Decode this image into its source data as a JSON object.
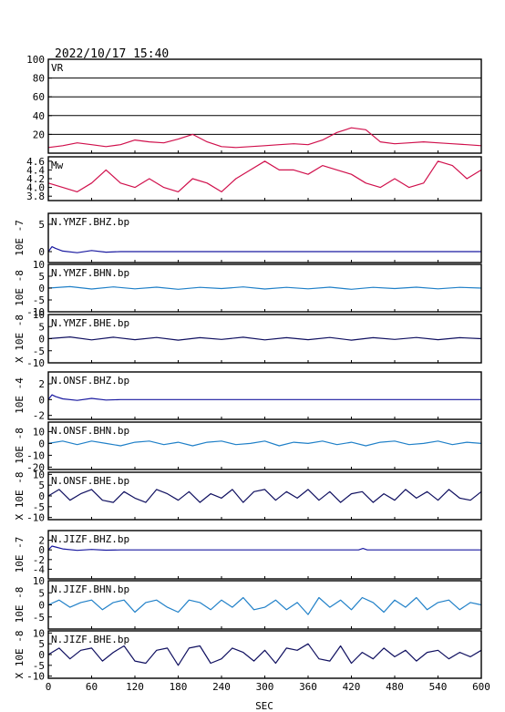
{
  "header": {
    "timestamp": "2022/10/17 15:40"
  },
  "x_axis": {
    "label": "SEC",
    "range": [
      0,
      600
    ],
    "ticks": [
      "0",
      "60",
      "120",
      "180",
      "240",
      "300",
      "360",
      "420",
      "480",
      "540",
      "600"
    ]
  },
  "chart_data": {
    "type": "line",
    "panels": [
      {
        "label": "VR",
        "color": "#d0104c",
        "ylim": [
          0,
          100
        ],
        "grid": true,
        "yticks": [
          "20",
          "40",
          "60",
          "80",
          "100"
        ],
        "scale_label": "",
        "series": {
          "x": [
            0,
            20,
            40,
            60,
            80,
            100,
            120,
            140,
            160,
            180,
            200,
            220,
            240,
            260,
            280,
            300,
            320,
            340,
            360,
            380,
            400,
            420,
            440,
            460,
            480,
            500,
            520,
            540,
            560,
            580,
            600
          ],
          "y": [
            6,
            8,
            11,
            9,
            7,
            9,
            14,
            12,
            11,
            15,
            20,
            12,
            7,
            6,
            7,
            8,
            9,
            10,
            9,
            14,
            22,
            27,
            25,
            12,
            10,
            11,
            12,
            11,
            10,
            9,
            8
          ]
        }
      },
      {
        "label": "Mw",
        "color": "#d0104c",
        "ylim": [
          3.7,
          4.7
        ],
        "grid": false,
        "yticks": [
          "3.8",
          "4.0",
          "4.2",
          "4.4",
          "4.6"
        ],
        "scale_label": "",
        "series": {
          "x": [
            0,
            20,
            40,
            60,
            80,
            100,
            120,
            140,
            160,
            180,
            200,
            220,
            240,
            260,
            280,
            300,
            320,
            340,
            360,
            380,
            400,
            420,
            440,
            460,
            480,
            500,
            520,
            540,
            560,
            580,
            600
          ],
          "y": [
            4.1,
            4.0,
            3.9,
            4.1,
            4.4,
            4.1,
            4.0,
            4.2,
            4.0,
            3.9,
            4.2,
            4.1,
            3.9,
            4.2,
            4.4,
            4.6,
            4.4,
            4.4,
            4.3,
            4.5,
            4.4,
            4.3,
            4.1,
            4.0,
            4.2,
            4.0,
            4.1,
            4.6,
            4.5,
            4.2,
            4.4
          ]
        }
      },
      {
        "label": "N.YMZF.BHZ.bp",
        "color": "#1a1aa0",
        "ylim": [
          -2,
          7
        ],
        "grid": false,
        "yticks": [
          "0",
          "5"
        ],
        "scale_label": "10E -7",
        "series": {
          "x": [
            0,
            5,
            10,
            20,
            40,
            60,
            80,
            100,
            140,
            200,
            300,
            400,
            500,
            600
          ],
          "y": [
            0,
            0.9,
            0.6,
            0.1,
            -0.2,
            0.2,
            -0.1,
            0,
            0,
            0,
            0,
            0,
            0,
            0
          ]
        }
      },
      {
        "label": "N.YMZF.BHN.bp",
        "color": "#2080c8",
        "ylim": [
          -10,
          10
        ],
        "grid": false,
        "yticks": [
          "-10",
          "-5",
          "0",
          "5",
          "10"
        ],
        "scale_label": "10E -8",
        "series": {
          "x": [
            0,
            30,
            60,
            90,
            120,
            150,
            180,
            210,
            240,
            270,
            300,
            330,
            360,
            390,
            420,
            450,
            480,
            510,
            540,
            570,
            600
          ],
          "y": [
            0,
            0.6,
            -0.4,
            0.5,
            -0.3,
            0.4,
            -0.5,
            0.3,
            -0.2,
            0.5,
            -0.4,
            0.3,
            -0.3,
            0.4,
            -0.5,
            0.3,
            -0.2,
            0.4,
            -0.3,
            0.3,
            0
          ]
        }
      },
      {
        "label": "N.YMZF.BHE.bp",
        "color": "#101060",
        "ylim": [
          -10,
          10
        ],
        "grid": false,
        "yticks": [
          "-10",
          "-5",
          "0",
          "5",
          "10"
        ],
        "scale_label": "X 10E -8",
        "series": {
          "x": [
            0,
            30,
            60,
            90,
            120,
            150,
            180,
            210,
            240,
            270,
            300,
            330,
            360,
            390,
            420,
            450,
            480,
            510,
            540,
            570,
            600
          ],
          "y": [
            0,
            0.7,
            -0.5,
            0.6,
            -0.4,
            0.5,
            -0.6,
            0.4,
            -0.3,
            0.6,
            -0.5,
            0.4,
            -0.4,
            0.5,
            -0.6,
            0.4,
            -0.3,
            0.5,
            -0.4,
            0.4,
            0
          ]
        }
      },
      {
        "label": "N.ONSF.BHZ.bp",
        "color": "#1a1aa0",
        "ylim": [
          -2.5,
          3.5
        ],
        "grid": false,
        "yticks": [
          "-2",
          "0",
          "2"
        ],
        "scale_label": "10E -4",
        "series": {
          "x": [
            0,
            5,
            10,
            20,
            40,
            60,
            80,
            100,
            140,
            200,
            300,
            400,
            500,
            600
          ],
          "y": [
            0,
            0.6,
            0.4,
            0.1,
            -0.1,
            0.15,
            -0.05,
            0,
            0,
            0,
            0,
            0,
            0,
            0
          ]
        }
      },
      {
        "label": "N.ONSF.BHN.bp",
        "color": "#2080c8",
        "ylim": [
          -22,
          18
        ],
        "grid": false,
        "yticks": [
          "-20",
          "-10",
          "0",
          "10"
        ],
        "scale_label": "10E -8",
        "series": {
          "x": [
            0,
            20,
            40,
            60,
            80,
            100,
            120,
            140,
            160,
            180,
            200,
            220,
            240,
            260,
            280,
            300,
            320,
            340,
            360,
            380,
            400,
            420,
            440,
            460,
            480,
            500,
            520,
            540,
            560,
            580,
            600
          ],
          "y": [
            0,
            2,
            -1,
            2,
            0,
            -2,
            1,
            2,
            -1,
            1,
            -2,
            1,
            2,
            -1,
            0,
            2,
            -2,
            1,
            0,
            2,
            -1,
            1,
            -2,
            1,
            2,
            -1,
            0,
            2,
            -1,
            1,
            0
          ]
        }
      },
      {
        "label": "N.ONSF.BHE.bp",
        "color": "#101060",
        "ylim": [
          -11,
          11
        ],
        "grid": false,
        "yticks": [
          "-10",
          "-5",
          "0",
          "5",
          "10"
        ],
        "scale_label": "X 10E -8",
        "series": {
          "x": [
            0,
            15,
            30,
            45,
            60,
            75,
            90,
            105,
            120,
            135,
            150,
            165,
            180,
            195,
            210,
            225,
            240,
            255,
            270,
            285,
            300,
            315,
            330,
            345,
            360,
            375,
            390,
            405,
            420,
            435,
            450,
            465,
            480,
            495,
            510,
            525,
            540,
            555,
            570,
            585,
            600
          ],
          "y": [
            0,
            3,
            -2,
            1,
            3,
            -2,
            -3,
            2,
            -1,
            -3,
            3,
            1,
            -2,
            2,
            -3,
            1,
            -1,
            3,
            -3,
            2,
            3,
            -2,
            2,
            -1,
            3,
            -2,
            2,
            -3,
            1,
            2,
            -3,
            1,
            -2,
            3,
            -1,
            2,
            -2,
            3,
            -1,
            -2,
            2
          ]
        }
      },
      {
        "label": "N.JIZF.BHZ.bp",
        "color": "#1a1aa0",
        "ylim": [
          -6,
          4
        ],
        "grid": false,
        "yticks": [
          "-4",
          "-2",
          "0",
          "2"
        ],
        "scale_label": "10E -7",
        "series": {
          "x": [
            0,
            5,
            10,
            20,
            40,
            60,
            80,
            100,
            140,
            200,
            300,
            400,
            430,
            436,
            442,
            450,
            500,
            600
          ],
          "y": [
            0,
            0.8,
            0.6,
            0.2,
            -0.1,
            0.1,
            -0.05,
            0,
            0,
            0,
            0,
            0,
            0,
            0.3,
            0,
            0,
            0,
            0
          ]
        }
      },
      {
        "label": "N.JIZF.BHN.bp",
        "color": "#2080c8",
        "ylim": [
          -10,
          10
        ],
        "grid": false,
        "yticks": [
          "-5",
          "0",
          "5",
          "10"
        ],
        "scale_label": "10E -8",
        "series": {
          "x": [
            0,
            15,
            30,
            45,
            60,
            75,
            90,
            105,
            120,
            135,
            150,
            165,
            180,
            195,
            210,
            225,
            240,
            255,
            270,
            285,
            300,
            315,
            330,
            345,
            360,
            375,
            390,
            405,
            420,
            435,
            450,
            465,
            480,
            495,
            510,
            525,
            540,
            555,
            570,
            585,
            600
          ],
          "y": [
            0,
            2,
            -1,
            1,
            2,
            -2,
            1,
            2,
            -3,
            1,
            2,
            -1,
            -3,
            2,
            1,
            -2,
            2,
            -1,
            3,
            -2,
            -1,
            2,
            -2,
            1,
            -4,
            3,
            -1,
            2,
            -2,
            3,
            1,
            -3,
            2,
            -1,
            3,
            -2,
            1,
            2,
            -2,
            1,
            0
          ]
        }
      },
      {
        "label": "N.JIZF.BHE.bp",
        "color": "#101060",
        "ylim": [
          -11,
          11
        ],
        "grid": false,
        "yticks": [
          "-10",
          "-5",
          "0",
          "5",
          "10"
        ],
        "scale_label": "X 10E -8",
        "series": {
          "x": [
            0,
            15,
            30,
            45,
            60,
            75,
            90,
            105,
            120,
            135,
            150,
            165,
            180,
            195,
            210,
            225,
            240,
            255,
            270,
            285,
            300,
            315,
            330,
            345,
            360,
            375,
            390,
            405,
            420,
            435,
            450,
            465,
            480,
            495,
            510,
            525,
            540,
            555,
            570,
            585,
            600
          ],
          "y": [
            0,
            3,
            -2,
            2,
            3,
            -3,
            1,
            4,
            -3,
            -4,
            2,
            3,
            -5,
            3,
            4,
            -4,
            -2,
            3,
            1,
            -3,
            2,
            -4,
            3,
            2,
            5,
            -2,
            -3,
            4,
            -4,
            1,
            -2,
            3,
            -1,
            2,
            -3,
            1,
            2,
            -2,
            1,
            -1,
            2
          ]
        }
      }
    ]
  }
}
